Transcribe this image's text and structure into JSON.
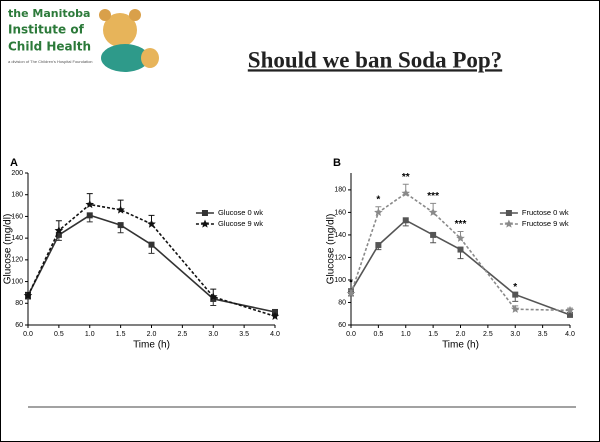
{
  "logo": {
    "lines": [
      "the Manitoba",
      "Institute of",
      "Child Health"
    ],
    "subtitle": "a division of The Children's Hospital Foundation"
  },
  "slide_title": "Should we ban Soda Pop?",
  "chart_data": [
    {
      "type": "line",
      "panel": "A",
      "x": [
        0,
        0.5,
        1,
        1.5,
        2,
        3,
        4
      ],
      "xlim": [
        0,
        4
      ],
      "xticks": [
        {
          "value": 0,
          "label": "0.0"
        },
        {
          "value": 0.5,
          "label": "0.5"
        },
        {
          "value": 1,
          "label": "1.0"
        },
        {
          "value": 1.5,
          "label": "1.5"
        },
        {
          "value": 2,
          "label": "2.0"
        },
        {
          "value": 2.5,
          "label": "2.5"
        },
        {
          "value": 3,
          "label": "3.0"
        },
        {
          "value": 3.5,
          "label": "3.5"
        },
        {
          "value": 4,
          "label": "4.0"
        }
      ],
      "ylim": [
        60,
        200
      ],
      "yticks": [
        60,
        80,
        100,
        120,
        140,
        160,
        180,
        200
      ],
      "xlabel": "Time (h)",
      "ylabel": "Glucose (mg/dl)",
      "series": [
        {
          "name": "Glucose 0 wk",
          "color": "#333333",
          "marker": "square",
          "dash": false,
          "error_side": "down",
          "values": [
            87,
            143,
            161,
            152,
            134,
            84,
            72
          ],
          "errors": [
            3,
            5,
            6,
            7,
            8,
            6,
            2
          ]
        },
        {
          "name": "Glucose 9 wk",
          "color": "#111111",
          "marker": "star",
          "dash": true,
          "error_side": "up",
          "values": [
            87,
            147,
            171,
            166,
            153,
            86,
            68
          ],
          "errors": [
            3,
            9,
            10,
            9,
            8,
            7,
            2
          ]
        }
      ]
    },
    {
      "type": "line",
      "panel": "B",
      "x": [
        0,
        0.5,
        1,
        1.5,
        2,
        3,
        4
      ],
      "xlim": [
        0,
        4
      ],
      "xticks": [
        {
          "value": 0,
          "label": "0.0"
        },
        {
          "value": 0.5,
          "label": "0.5"
        },
        {
          "value": 1,
          "label": "1.0"
        },
        {
          "value": 1.5,
          "label": "1.5"
        },
        {
          "value": 2,
          "label": "2.0"
        },
        {
          "value": 2.5,
          "label": "2.5"
        },
        {
          "value": 3,
          "label": "3.0"
        },
        {
          "value": 3.5,
          "label": "3.5"
        },
        {
          "value": 4,
          "label": "4.0"
        }
      ],
      "ylim": [
        60,
        195
      ],
      "yticks": [
        60,
        80,
        100,
        120,
        140,
        160,
        180
      ],
      "xlabel": "Time (h)",
      "ylabel": "Glucose (mg/dl)",
      "significance": [
        "*",
        "*",
        "**",
        "***",
        "***",
        "*",
        null
      ],
      "series": [
        {
          "name": "Fructose 0 wk",
          "color": "#555555",
          "marker": "square",
          "dash": false,
          "error_side": "down",
          "values": [
            90,
            131,
            153,
            140,
            127,
            87,
            69
          ],
          "errors": [
            4,
            4,
            5,
            7,
            8,
            6,
            2
          ]
        },
        {
          "name": "Fructose 9 wk",
          "color": "#8a8a8a",
          "marker": "star",
          "dash": true,
          "error_side": "up",
          "values": [
            88,
            160,
            177,
            160,
            137,
            74,
            73
          ],
          "errors": [
            3,
            5,
            8,
            8,
            6,
            3,
            2
          ]
        }
      ]
    }
  ]
}
